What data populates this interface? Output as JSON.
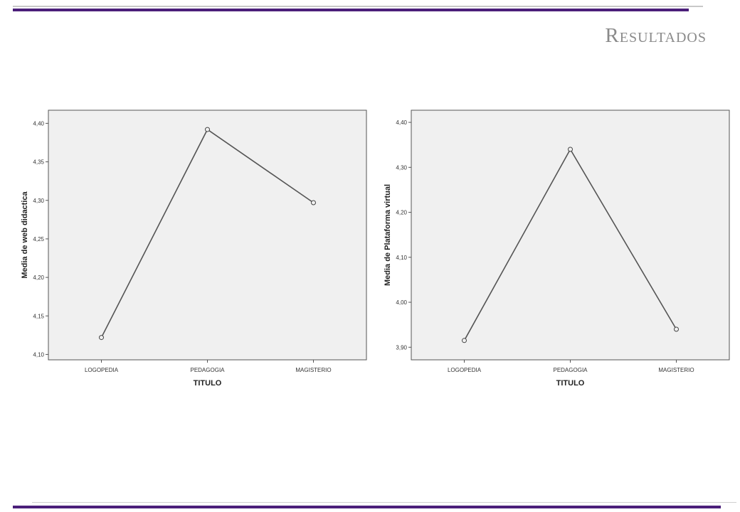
{
  "header": {
    "title": "Resultados"
  },
  "chart_data": [
    {
      "type": "line",
      "categories": [
        "LOGOPEDIA",
        "PEDAGOGIA",
        "MAGISTERIO"
      ],
      "values": [
        4.122,
        4.392,
        4.297
      ],
      "xlabel": "TITULO",
      "ylabel": "Media de web didactica",
      "ylim": [
        4.093,
        4.417
      ],
      "yticks": [
        4.1,
        4.15,
        4.2,
        4.25,
        4.3,
        4.35,
        4.4
      ],
      "ytick_labels": [
        "4,10",
        "4,15",
        "4,20",
        "4,25",
        "4,30",
        "4,35",
        "4,40"
      ],
      "grid": false,
      "colors": {
        "line": "#555555",
        "background": "#f0f0f0"
      }
    },
    {
      "type": "line",
      "categories": [
        "LOGOPEDIA",
        "PEDAGOGIA",
        "MAGISTERIO"
      ],
      "values": [
        3.915,
        4.34,
        3.94
      ],
      "xlabel": "TITULO",
      "ylabel": "Media de Plataforma virtual",
      "ylim": [
        3.872,
        4.427
      ],
      "yticks": [
        3.9,
        4.0,
        4.1,
        4.2,
        4.3,
        4.4
      ],
      "ytick_labels": [
        "3,90",
        "4,00",
        "4,10",
        "4,20",
        "4,30",
        "4,40"
      ],
      "grid": false,
      "colors": {
        "line": "#555555",
        "background": "#f0f0f0"
      }
    }
  ]
}
